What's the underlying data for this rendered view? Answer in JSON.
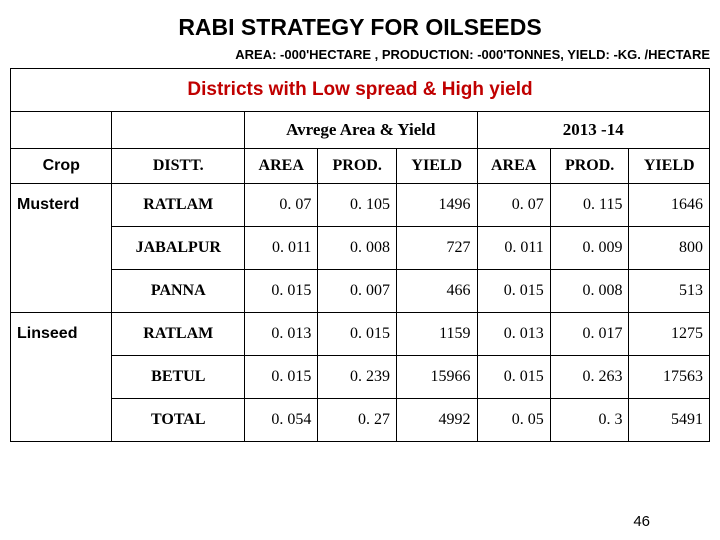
{
  "title": "RABI STRATEGY FOR OILSEEDS",
  "subtitle": "AREA: -000'HECTARE , PRODUCTION: -000'TONNES, YIELD: -KG. /HECTARE",
  "section_title": "Districts with Low spread & High yield",
  "group_headers": {
    "avg": "Avrege Area & Yield",
    "year": "2013 -14"
  },
  "col_headers": {
    "crop": "Crop",
    "distt": "DISTT.",
    "area1": "AREA",
    "prod1": "PROD.",
    "yield1": "YIELD",
    "area2": "AREA",
    "prod2": "PROD.",
    "yield2": "YIELD"
  },
  "rows": [
    {
      "crop": "Musterd",
      "distt": "RATLAM",
      "a1": "0. 07",
      "p1": "0. 105",
      "y1": "1496",
      "a2": "0. 07",
      "p2": "0. 115",
      "y2": "1646"
    },
    {
      "crop": "",
      "distt": "JABALPUR",
      "a1": "0. 011",
      "p1": "0. 008",
      "y1": "727",
      "a2": "0. 011",
      "p2": "0. 009",
      "y2": "800"
    },
    {
      "crop": "",
      "distt": "PANNA",
      "a1": "0. 015",
      "p1": "0. 007",
      "y1": "466",
      "a2": "0. 015",
      "p2": "0. 008",
      "y2": "513"
    },
    {
      "crop": "Linseed",
      "distt": "RATLAM",
      "a1": "0. 013",
      "p1": "0. 015",
      "y1": "1159",
      "a2": "0. 013",
      "p2": "0. 017",
      "y2": "1275"
    },
    {
      "crop": "",
      "distt": "BETUL",
      "a1": "0. 015",
      "p1": "0. 239",
      "y1": "15966",
      "a2": "0. 015",
      "p2": "0. 263",
      "y2": "17563"
    },
    {
      "crop": "",
      "distt": "TOTAL",
      "a1": "0. 054",
      "p1": "0. 27",
      "y1": "4992",
      "a2": "0. 05",
      "p2": "0. 3",
      "y2": "5491"
    }
  ],
  "page_number": "46",
  "colors": {
    "section_title": "#c00000",
    "border": "#000000",
    "text": "#000000",
    "background": "#ffffff"
  }
}
